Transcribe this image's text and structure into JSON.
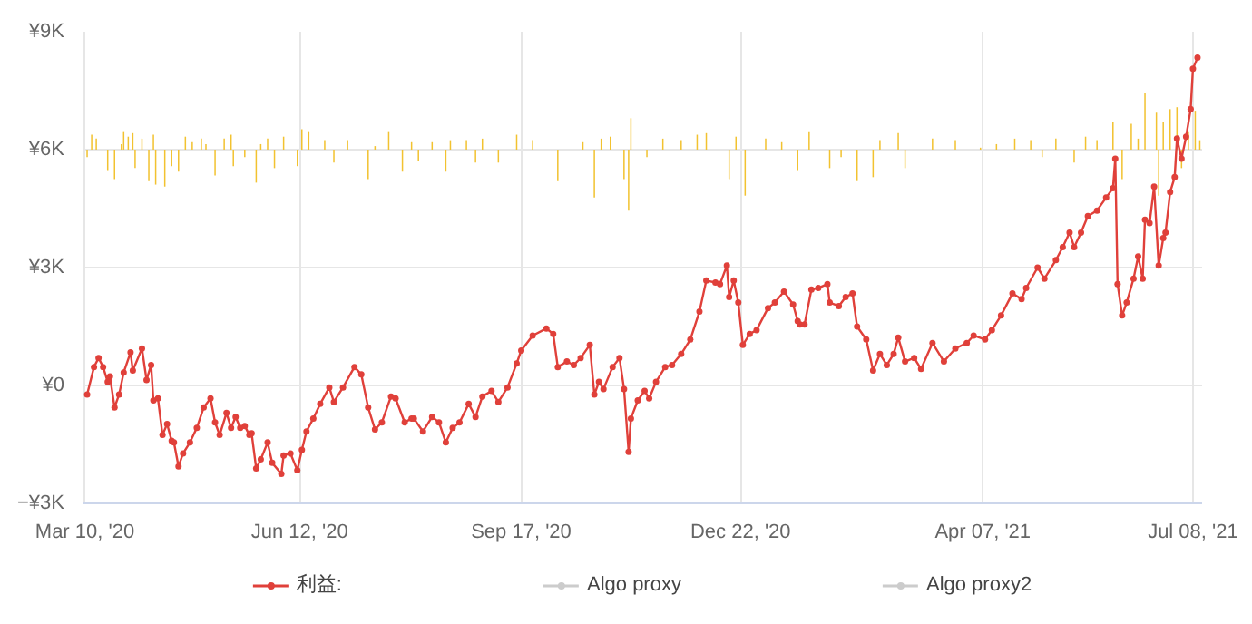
{
  "chart_data": {
    "type": "line",
    "xlim": [
      "2020-03-09",
      "2021-07-12"
    ],
    "xticks": [
      {
        "value": "2020-03-10",
        "label": "Mar 10, '20"
      },
      {
        "value": "2020-06-12",
        "label": "Jun 12, '20"
      },
      {
        "value": "2020-09-17",
        "label": "Sep 17, '20"
      },
      {
        "value": "2020-12-22",
        "label": "Dec 22, '20"
      },
      {
        "value": "2021-04-07",
        "label": "Apr 07, '21"
      },
      {
        "value": "2021-07-08",
        "label": "Jul 08, '21"
      }
    ],
    "ylim": [
      -3000,
      9000
    ],
    "yticks": [
      {
        "value": -3000,
        "label": "−¥3K"
      },
      {
        "value": 0,
        "label": "¥0"
      },
      {
        "value": 3000,
        "label": "¥3K"
      },
      {
        "value": 6000,
        "label": "¥6K"
      },
      {
        "value": 9000,
        "label": "¥9K"
      }
    ],
    "grid": true,
    "legend": "bottom",
    "marker": "circle",
    "series": [
      {
        "type": "bar",
        "color": "#f2c230",
        "x": [
          "2020-03-11",
          "2020-03-13",
          "2020-03-15",
          "2020-03-20",
          "2020-03-23",
          "2020-03-26",
          "2020-03-27",
          "2020-03-29",
          "2020-03-31",
          "2020-04-01",
          "2020-04-04",
          "2020-04-07",
          "2020-04-09",
          "2020-04-10",
          "2020-04-14",
          "2020-04-17",
          "2020-04-20",
          "2020-04-23",
          "2020-04-26",
          "2020-04-30",
          "2020-05-02",
          "2020-05-06",
          "2020-05-10",
          "2020-05-13",
          "2020-05-14",
          "2020-05-19",
          "2020-05-24",
          "2020-05-26",
          "2020-05-29",
          "2020-06-01",
          "2020-06-05",
          "2020-06-11",
          "2020-06-13",
          "2020-06-16",
          "2020-06-23",
          "2020-06-27",
          "2020-07-03",
          "2020-07-12",
          "2020-07-15",
          "2020-07-21",
          "2020-07-27",
          "2020-07-31",
          "2020-08-03",
          "2020-08-09",
          "2020-08-15",
          "2020-08-17",
          "2020-08-24",
          "2020-08-28",
          "2020-08-31",
          "2020-09-07",
          "2020-09-15",
          "2020-09-22",
          "2020-10-03",
          "2020-10-14",
          "2020-10-19",
          "2020-10-22",
          "2020-10-26",
          "2020-11-01",
          "2020-11-03",
          "2020-11-04",
          "2020-11-11",
          "2020-11-18",
          "2020-11-26",
          "2020-12-03",
          "2020-12-07",
          "2020-12-17",
          "2020-12-20",
          "2020-12-24",
          "2021-01-02",
          "2021-01-09",
          "2021-01-16",
          "2021-01-21",
          "2021-01-30",
          "2021-02-04",
          "2021-02-11",
          "2021-02-18",
          "2021-02-21",
          "2021-03-01",
          "2021-03-04",
          "2021-03-16",
          "2021-03-26",
          "2021-04-06",
          "2021-04-13",
          "2021-04-21",
          "2021-04-28",
          "2021-05-03",
          "2021-05-09",
          "2021-05-17",
          "2021-05-22",
          "2021-05-27",
          "2021-06-03",
          "2021-06-07",
          "2021-06-11",
          "2021-06-14",
          "2021-06-17",
          "2021-06-22",
          "2021-06-23",
          "2021-06-25",
          "2021-06-28",
          "2021-07-01",
          "2021-07-03",
          "2021-07-06",
          "2021-07-09",
          "2021-07-11"
        ],
        "values": [
          -190,
          380,
          280,
          -520,
          -750,
          140,
          470,
          330,
          420,
          -470,
          280,
          -800,
          380,
          -890,
          -940,
          -420,
          -560,
          330,
          190,
          280,
          140,
          -660,
          280,
          380,
          -420,
          -190,
          -840,
          140,
          280,
          -470,
          330,
          -420,
          520,
          470,
          240,
          -330,
          240,
          -750,
          90,
          470,
          -560,
          190,
          -280,
          190,
          -560,
          240,
          240,
          -330,
          280,
          -330,
          380,
          240,
          -800,
          190,
          -1220,
          280,
          330,
          -750,
          -1550,
          800,
          -190,
          280,
          240,
          380,
          420,
          -750,
          330,
          -1170,
          280,
          190,
          -520,
          470,
          -470,
          -190,
          -800,
          -700,
          240,
          420,
          -470,
          280,
          240,
          50,
          140,
          280,
          240,
          -190,
          280,
          -330,
          330,
          240,
          700,
          -750,
          660,
          280,
          1450,
          940,
          -1170,
          700,
          1030,
          1080,
          -470,
          470,
          990,
          240
        ],
        "base": [
          6000,
          6000,
          6000,
          6000,
          6000,
          6000,
          6000,
          6000,
          6000,
          6000,
          6000,
          6000,
          6000,
          6000,
          6000,
          6000,
          6000,
          6000,
          6000,
          6000,
          6000,
          6000,
          6000,
          6000,
          6000,
          6000,
          6000,
          6000,
          6000,
          6000,
          6000,
          6000,
          6000,
          6000,
          6000,
          6000,
          6000,
          6000,
          6000,
          6000,
          6000,
          6000,
          6000,
          6000,
          6000,
          6000,
          6000,
          6000,
          6000,
          6000,
          6000,
          6000,
          6000,
          6000,
          6000,
          6000,
          6000,
          6000,
          6000,
          6000,
          6000,
          6000,
          6000,
          6000,
          6000,
          6000,
          6000,
          6000,
          6000,
          6000,
          6000,
          6000,
          6000,
          6000,
          6000,
          6000,
          6000,
          6000,
          6000,
          6000,
          6000,
          6000,
          6000,
          6000,
          6000,
          6000,
          6000,
          6000,
          6000,
          6000,
          6000,
          6000,
          6000,
          6000,
          6000,
          6000,
          6000,
          6000,
          6000,
          6000,
          6000,
          6000,
          6000,
          6000
        ]
      },
      {
        "name": "利益:",
        "color": "#e0403a",
        "x": [
          "2020-03-11",
          "2020-03-14",
          "2020-03-16",
          "2020-03-18",
          "2020-03-20",
          "2020-03-21",
          "2020-03-23",
          "2020-03-25",
          "2020-03-27",
          "2020-03-30",
          "2020-03-31",
          "2020-04-04",
          "2020-04-06",
          "2020-04-08",
          "2020-04-09",
          "2020-04-11",
          "2020-04-13",
          "2020-04-15",
          "2020-04-17",
          "2020-04-18",
          "2020-04-20",
          "2020-04-22",
          "2020-04-25",
          "2020-04-28",
          "2020-05-01",
          "2020-05-04",
          "2020-05-06",
          "2020-05-08",
          "2020-05-11",
          "2020-05-13",
          "2020-05-15",
          "2020-05-17",
          "2020-05-19",
          "2020-05-21",
          "2020-05-22",
          "2020-05-24",
          "2020-05-26",
          "2020-05-29",
          "2020-05-31",
          "2020-06-04",
          "2020-06-05",
          "2020-06-08",
          "2020-06-11",
          "2020-06-13",
          "2020-06-15",
          "2020-06-18",
          "2020-06-21",
          "2020-06-25",
          "2020-06-27",
          "2020-07-01",
          "2020-07-06",
          "2020-07-09",
          "2020-07-12",
          "2020-07-15",
          "2020-07-18",
          "2020-07-22",
          "2020-07-24",
          "2020-07-28",
          "2020-07-31",
          "2020-08-01",
          "2020-08-05",
          "2020-08-09",
          "2020-08-12",
          "2020-08-15",
          "2020-08-18",
          "2020-08-21",
          "2020-08-25",
          "2020-08-28",
          "2020-08-31",
          "2020-09-04",
          "2020-09-07",
          "2020-09-11",
          "2020-09-15",
          "2020-09-17",
          "2020-09-22",
          "2020-09-28",
          "2020-10-01",
          "2020-10-03",
          "2020-10-07",
          "2020-10-10",
          "2020-10-13",
          "2020-10-17",
          "2020-10-19",
          "2020-10-21",
          "2020-10-23",
          "2020-10-27",
          "2020-10-30",
          "2020-11-01",
          "2020-11-03",
          "2020-11-04",
          "2020-11-07",
          "2020-11-10",
          "2020-11-12",
          "2020-11-15",
          "2020-11-19",
          "2020-11-22",
          "2020-11-26",
          "2020-11-30",
          "2020-12-04",
          "2020-12-07",
          "2020-12-11",
          "2020-12-13",
          "2020-12-16",
          "2020-12-17",
          "2020-12-19",
          "2020-12-21",
          "2020-12-23",
          "2020-12-26",
          "2020-12-29",
          "2021-01-03",
          "2021-01-06",
          "2021-01-10",
          "2021-01-14",
          "2021-01-16",
          "2021-01-17",
          "2021-01-19",
          "2021-01-22",
          "2021-01-25",
          "2021-01-29",
          "2021-01-30",
          "2021-02-03",
          "2021-02-06",
          "2021-02-09",
          "2021-02-11",
          "2021-02-15",
          "2021-02-18",
          "2021-02-21",
          "2021-02-24",
          "2021-02-27",
          "2021-03-01",
          "2021-03-04",
          "2021-03-08",
          "2021-03-11",
          "2021-03-16",
          "2021-03-21",
          "2021-03-26",
          "2021-03-31",
          "2021-04-03",
          "2021-04-08",
          "2021-04-11",
          "2021-04-15",
          "2021-04-20",
          "2021-04-24",
          "2021-04-26",
          "2021-05-01",
          "2021-05-04",
          "2021-05-09",
          "2021-05-12",
          "2021-05-15",
          "2021-05-17",
          "2021-05-20",
          "2021-05-23",
          "2021-05-27",
          "2021-05-31",
          "2021-06-03",
          "2021-06-04",
          "2021-06-05",
          "2021-06-07",
          "2021-06-09",
          "2021-06-12",
          "2021-06-14",
          "2021-06-16",
          "2021-06-17",
          "2021-06-19",
          "2021-06-21",
          "2021-06-23",
          "2021-06-25",
          "2021-06-26",
          "2021-06-28",
          "2021-06-30",
          "2021-07-01",
          "2021-07-03",
          "2021-07-05",
          "2021-07-07",
          "2021-07-08",
          "2021-07-10"
        ],
        "values": [
          -230,
          470,
          700,
          470,
          90,
          230,
          -560,
          -230,
          330,
          840,
          380,
          940,
          140,
          520,
          -380,
          -330,
          -1260,
          -980,
          -1410,
          -1450,
          -2060,
          -1730,
          -1450,
          -1080,
          -560,
          -330,
          -940,
          -1260,
          -700,
          -1080,
          -800,
          -1080,
          -1030,
          -1260,
          -1220,
          -2110,
          -1880,
          -1450,
          -1970,
          -2250,
          -1780,
          -1730,
          -2160,
          -1640,
          -1170,
          -840,
          -470,
          -50,
          -420,
          -50,
          470,
          280,
          -560,
          -1120,
          -940,
          -280,
          -330,
          -940,
          -840,
          -840,
          -1170,
          -800,
          -940,
          -1450,
          -1080,
          -940,
          -470,
          -800,
          -280,
          -140,
          -420,
          -50,
          560,
          890,
          1270,
          1450,
          1310,
          470,
          610,
          520,
          700,
          1030,
          -230,
          90,
          -90,
          470,
          700,
          -90,
          -1690,
          -840,
          -380,
          -140,
          -330,
          90,
          470,
          520,
          800,
          1170,
          1880,
          2670,
          2620,
          2580,
          3050,
          2250,
          2670,
          2110,
          1030,
          1310,
          1410,
          1970,
          2110,
          2390,
          2060,
          1640,
          1550,
          1550,
          2440,
          2480,
          2580,
          2110,
          2020,
          2250,
          2340,
          1500,
          1170,
          380,
          800,
          520,
          800,
          1220,
          610,
          700,
          420,
          1080,
          610,
          940,
          1080,
          1270,
          1170,
          1410,
          1780,
          2340,
          2200,
          2480,
          3000,
          2720,
          3190,
          3520,
          3890,
          3520,
          3890,
          4310,
          4450,
          4780,
          5020,
          5770,
          2580,
          1780,
          2110,
          2720,
          3280,
          2720,
          4220,
          4130,
          5060,
          3050,
          3750,
          3890,
          4920,
          5300,
          6280,
          5770,
          6330,
          7030,
          8060,
          8340
        ]
      },
      {
        "name": "Algo proxy",
        "color": "#cccccc"
      },
      {
        "name": "Algo proxy2",
        "color": "#cccccc"
      }
    ]
  }
}
